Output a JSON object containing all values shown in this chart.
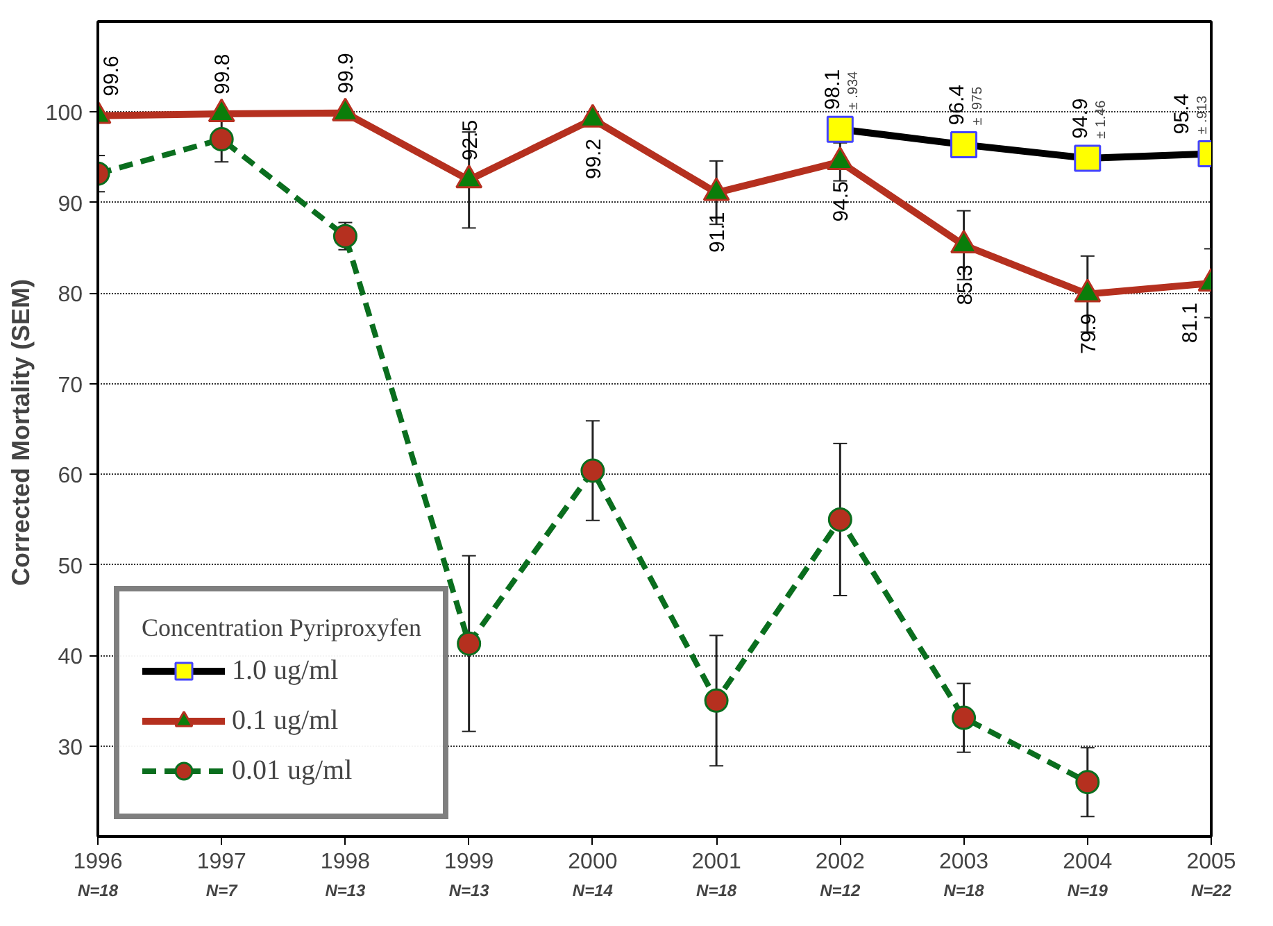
{
  "chart_data": {
    "type": "line",
    "ylabel": "Corrected Mortality  (SEM)",
    "legend_title": "Concentration Pyriproxyfen",
    "x": [
      1996,
      1997,
      1998,
      1999,
      2000,
      2001,
      2002,
      2003,
      2004,
      2005
    ],
    "xlim": [
      1996,
      2005
    ],
    "xticks": [
      1996,
      1997,
      1998,
      1999,
      2000,
      2001,
      2002,
      2003,
      2004,
      2005
    ],
    "ylim": [
      20,
      110
    ],
    "yticks": [
      30,
      40,
      50,
      60,
      70,
      80,
      90,
      100
    ],
    "grid": "y",
    "legend": "bottom left",
    "series": [
      {
        "name": "1.0 ug/ml",
        "color": "#000000",
        "colors": [
          null,
          null,
          null,
          null,
          null,
          null,
          "#ffff00",
          "#ffff00",
          "#ffff00",
          "#ffff00"
        ],
        "marker": "square",
        "line_style": "solid",
        "values": [
          null,
          null,
          null,
          null,
          null,
          null,
          98.1,
          96.4,
          94.9,
          95.4
        ],
        "value_labels": [
          null,
          null,
          null,
          null,
          null,
          null,
          "98.1",
          "96.4",
          "94.9",
          "95.4"
        ]
      },
      {
        "name": "0.1 ug/ml",
        "color": "#b5301f",
        "colors": [
          "#0a7d0a",
          "#0a7d0a",
          "#0a7d0a",
          "#0a7d0a",
          "#0a7d0a",
          "#0a7d0a",
          "#0a7d0a",
          "#0a7d0a",
          "#0a7d0a",
          "#0a7d0a"
        ],
        "marker": "triangle",
        "line_style": "solid",
        "values": [
          99.6,
          99.8,
          99.9,
          92.5,
          99.2,
          91.1,
          94.5,
          85.3,
          79.9,
          81.1
        ],
        "errors": [
          null,
          null,
          null,
          5.3,
          null,
          3.5,
          2.1,
          3.8,
          4.2,
          3.8
        ],
        "value_labels": [
          "99.6",
          "99.8",
          "99.9",
          "92.5",
          "99.2",
          "91.1",
          "94.5",
          "85.3",
          "79.9",
          "81.1"
        ]
      },
      {
        "name": "0.01 ug/ml",
        "color": "#0a6e1e",
        "colors": [
          "#b5301f",
          "#b5301f",
          "#b5301f",
          "#b5301f",
          "#b5301f",
          "#b5301f",
          "#b5301f",
          "#b5301f",
          "#b5301f",
          null
        ],
        "marker": "circle",
        "line_style": "dashed",
        "values": [
          93.2,
          97.0,
          86.3,
          41.3,
          60.4,
          35.0,
          55.0,
          33.1,
          26.0,
          null
        ],
        "errors": [
          2.0,
          2.5,
          1.5,
          9.7,
          5.5,
          7.2,
          8.4,
          3.8,
          3.8,
          null
        ]
      }
    ],
    "annotations": [
      {
        "text": "± .934",
        "x": 2002,
        "y": 98.1
      },
      {
        "text": "± .975",
        "x": 2003,
        "y": 96.4
      },
      {
        "text": "± 1.46",
        "x": 2004,
        "y": 94.9
      },
      {
        "text": "± .913",
        "x": 2005,
        "y": 95.4
      },
      "N=18",
      "N=7",
      "N=13",
      "N=13",
      "N=14",
      "N=18",
      "N=12",
      "N=18",
      "N=19",
      "N=22"
    ]
  }
}
